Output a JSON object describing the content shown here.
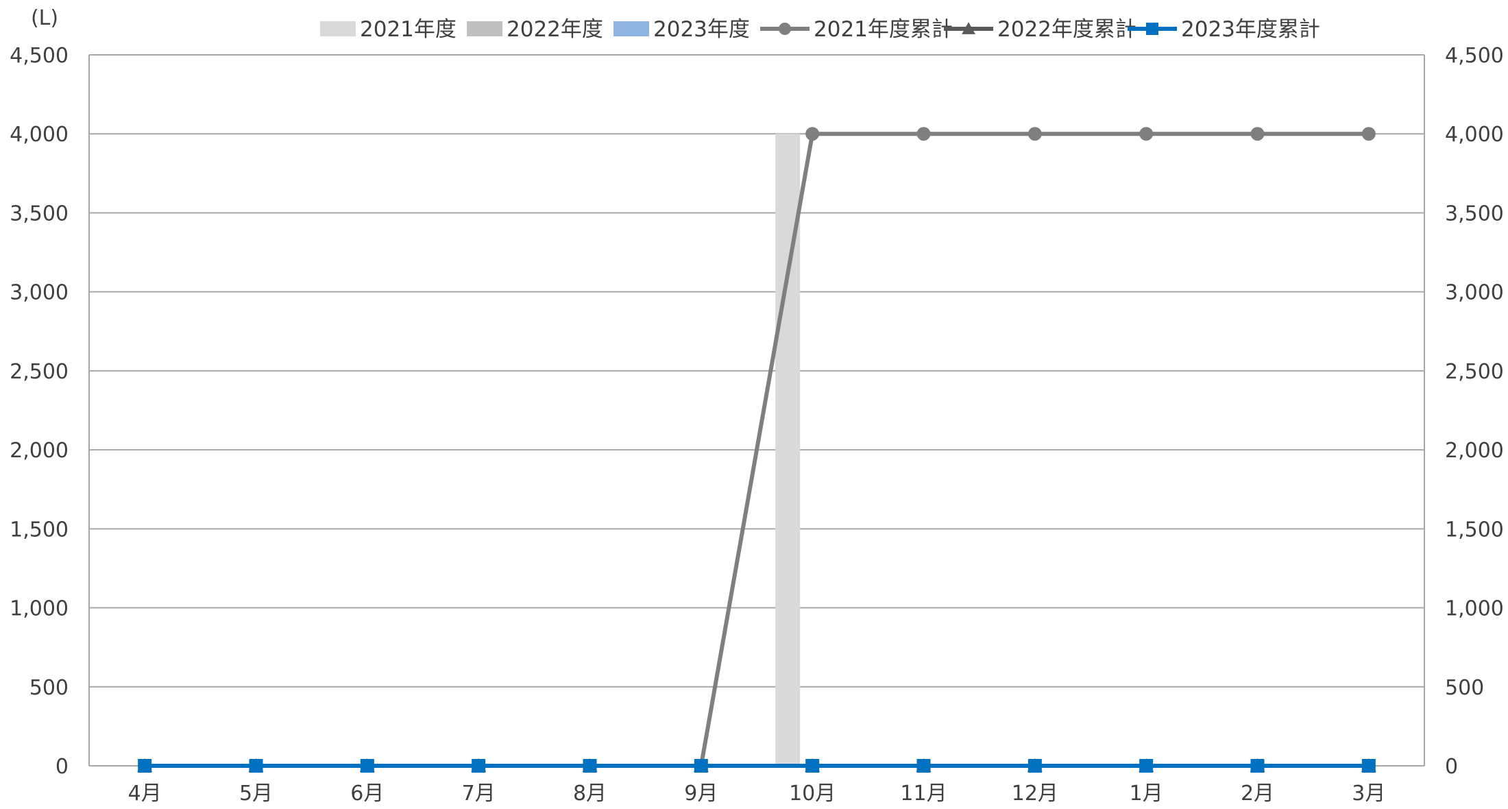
{
  "chart_data": {
    "type": "bar",
    "unit_label": "(L)",
    "categories": [
      "4月",
      "5月",
      "6月",
      "7月",
      "8月",
      "9月",
      "10月",
      "11月",
      "12月",
      "1月",
      "2月",
      "3月"
    ],
    "ylim": [
      0,
      4500
    ],
    "y2lim": [
      0,
      4500
    ],
    "y_ticks": [
      0,
      500,
      1000,
      1500,
      2000,
      2500,
      3000,
      3500,
      4000,
      4500
    ],
    "y_tick_labels": [
      "0",
      "500",
      "1,000",
      "1,500",
      "2,000",
      "2,500",
      "3,000",
      "3,500",
      "4,000",
      "4,500"
    ],
    "grid": true,
    "legend_position": "top",
    "series": [
      {
        "name": "2021年度",
        "kind": "bar",
        "color": "#d9d9d9",
        "values": [
          0,
          0,
          0,
          0,
          0,
          0,
          4000,
          0,
          0,
          0,
          0,
          0
        ]
      },
      {
        "name": "2022年度",
        "kind": "bar",
        "color": "#bfbfbf",
        "values": [
          0,
          0,
          0,
          0,
          0,
          0,
          0,
          0,
          0,
          0,
          0,
          0
        ]
      },
      {
        "name": "2023年度",
        "kind": "bar",
        "color": "#8eb4e3",
        "values": [
          0,
          0,
          0,
          0,
          0,
          0,
          0,
          0,
          0,
          0,
          0,
          0
        ]
      },
      {
        "name": "2021年度累計",
        "kind": "line",
        "marker": "circle",
        "color": "#7f7f7f",
        "values": [
          null,
          null,
          null,
          null,
          null,
          0,
          4000,
          4000,
          4000,
          4000,
          4000,
          4000
        ]
      },
      {
        "name": "2022年度累計",
        "kind": "line",
        "marker": "triangle",
        "color": "#595959",
        "values": [
          0,
          0,
          0,
          0,
          0,
          0,
          0,
          0,
          0,
          0,
          0,
          0
        ]
      },
      {
        "name": "2023年度累計",
        "kind": "line",
        "marker": "square",
        "color": "#0070c0",
        "values": [
          0,
          0,
          0,
          0,
          0,
          0,
          0,
          0,
          0,
          0,
          0,
          0
        ]
      }
    ]
  }
}
